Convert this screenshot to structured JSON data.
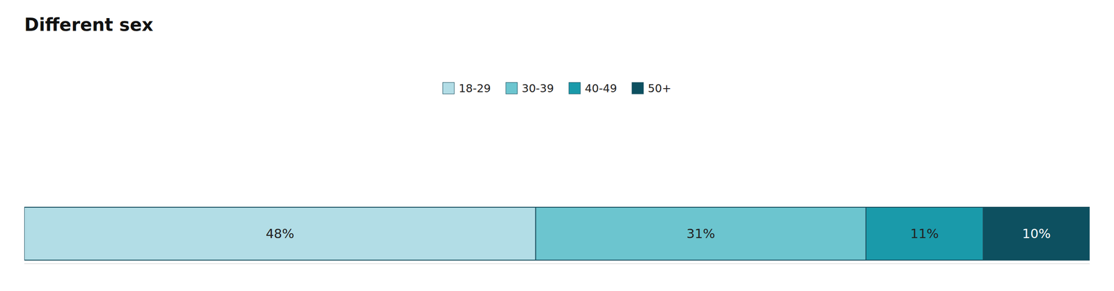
{
  "chart_data": {
    "type": "bar",
    "orientation": "horizontal",
    "stacked": true,
    "title": "Different sex",
    "categories": [
      null
    ],
    "series": [
      {
        "name": "18-29",
        "color": "#b2dde6",
        "values": [
          48
        ],
        "value_labels": [
          "48%"
        ]
      },
      {
        "name": "30-39",
        "color": "#6cc5cf",
        "values": [
          31
        ],
        "value_labels": [
          "31%"
        ]
      },
      {
        "name": "40-49",
        "color": "#1a9aaa",
        "values": [
          11
        ],
        "value_labels": [
          "11%"
        ]
      },
      {
        "name": "50+",
        "color": "#0d5060",
        "values": [
          10
        ],
        "value_labels": [
          "10%"
        ]
      }
    ],
    "xlim": [
      0,
      100
    ],
    "tick_labels": false,
    "grid": false,
    "legend": "top",
    "data_labels": true
  }
}
